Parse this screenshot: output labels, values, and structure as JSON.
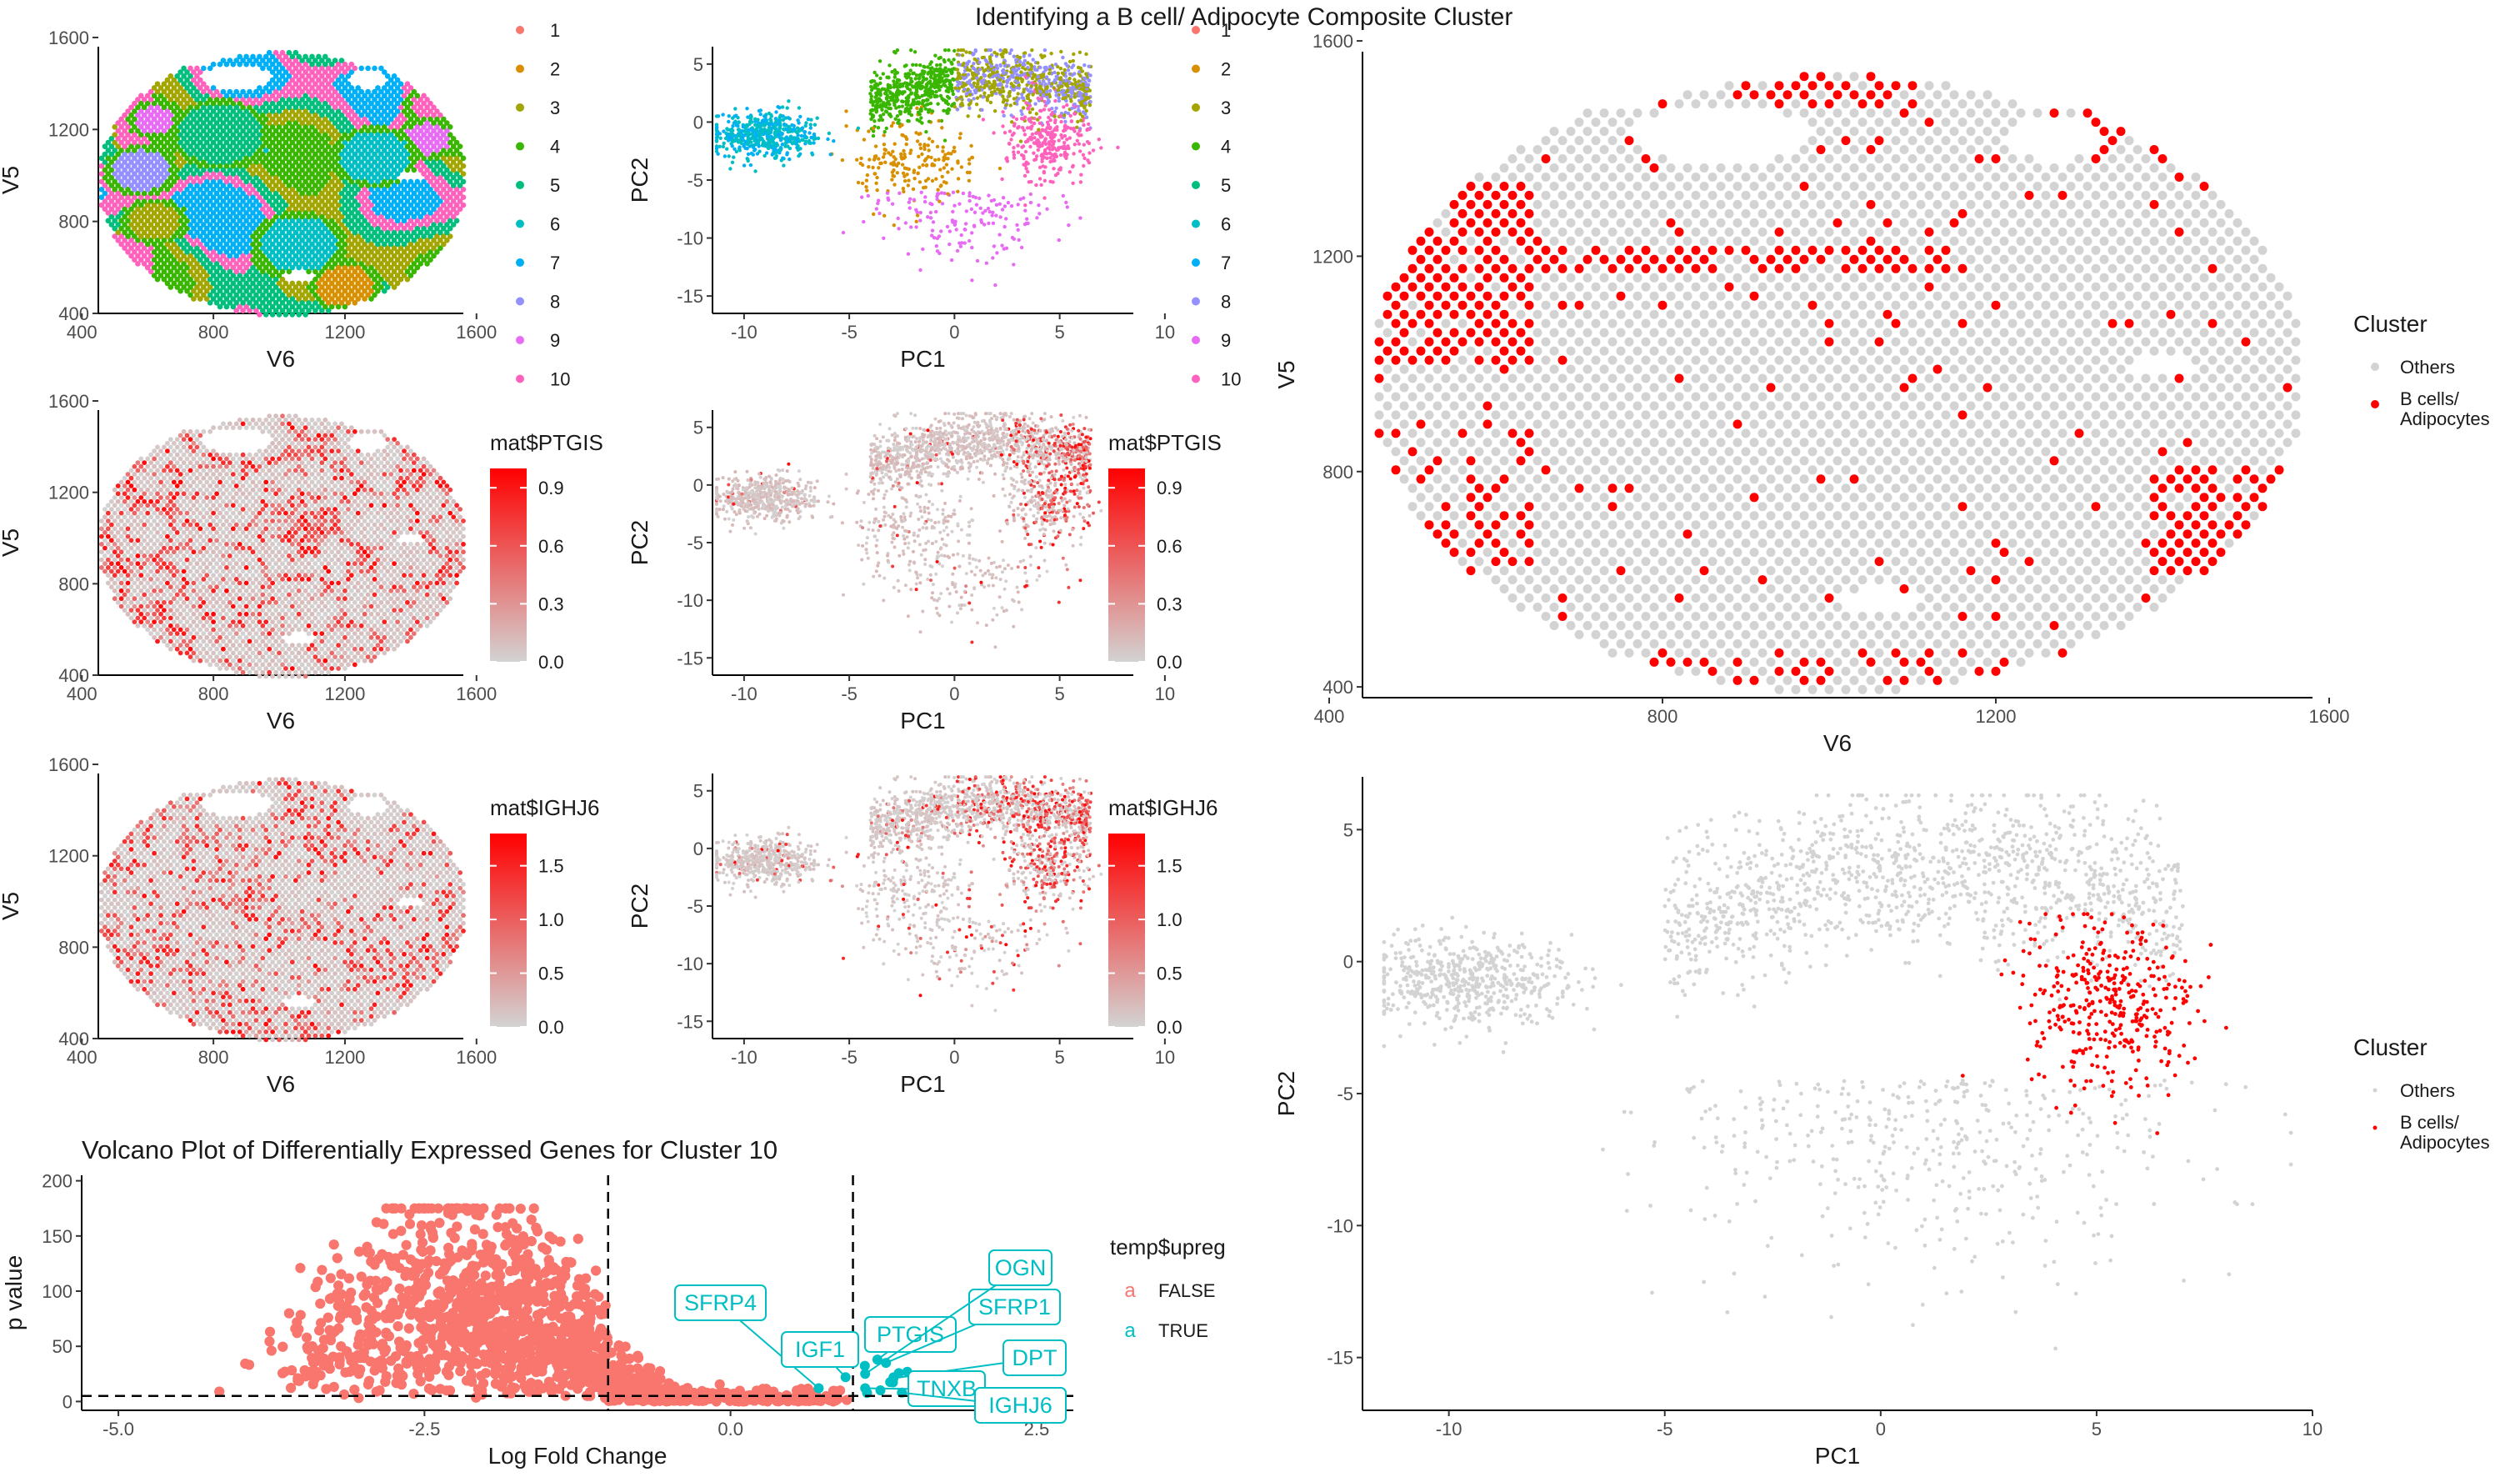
{
  "figure": {
    "title": "Identifying a B cell/ Adipocyte Composite Cluster"
  },
  "colors": {
    "clusters": [
      "#F8766D",
      "#D89000",
      "#A3A500",
      "#39B600",
      "#00BF7D",
      "#00BFC4",
      "#00B0F6",
      "#9590FF",
      "#E76BF3",
      "#FF62BC"
    ],
    "grey": "#D3D3D3",
    "red": "#FF0000",
    "false": "#F8766D",
    "true": "#00BFC4"
  },
  "chart_data": [
    {
      "id": "cluster-spatial",
      "type": "scatter",
      "xlabel": "V6",
      "ylabel": "V5",
      "xlim": [
        450,
        1560
      ],
      "ylim": [
        400,
        1560
      ],
      "xticks": [
        400,
        800,
        1200,
        1600
      ],
      "yticks": [
        400,
        800,
        1200,
        1600
      ],
      "grid": false
    },
    {
      "id": "cluster-pca",
      "type": "scatter",
      "xlabel": "PC1",
      "ylabel": "PC2",
      "xlim": [
        -11.5,
        8.5
      ],
      "ylim": [
        -16.5,
        6.5
      ],
      "xticks": [
        -10,
        -5,
        0,
        5,
        10
      ],
      "yticks": [
        5,
        0,
        -5,
        -10,
        -15
      ],
      "legend": {
        "title": "",
        "position": "right",
        "entries": [
          "1",
          "2",
          "3",
          "4",
          "5",
          "6",
          "7",
          "8",
          "9",
          "10"
        ]
      }
    },
    {
      "id": "ptgis-spatial",
      "type": "scatter",
      "xlabel": "V6",
      "ylabel": "V5",
      "xlim": [
        450,
        1560
      ],
      "ylim": [
        400,
        1560
      ],
      "xticks": [
        400,
        800,
        1200,
        1600
      ],
      "yticks": [
        400,
        800,
        1200,
        1600
      ]
    },
    {
      "id": "ptgis-pca",
      "type": "scatter",
      "xlabel": "PC1",
      "ylabel": "PC2",
      "xlim": [
        -11.5,
        8.5
      ],
      "ylim": [
        -16.5,
        6.5
      ],
      "xticks": [
        -10,
        -5,
        0,
        5,
        10
      ],
      "yticks": [
        5,
        0,
        -5,
        -10,
        -15
      ],
      "legend": {
        "title": "mat$PTGIS",
        "position": "right",
        "ticks": [
          "0.9",
          "0.6",
          "0.3",
          "0.0"
        ],
        "range": [
          0,
          1.0
        ]
      }
    },
    {
      "id": "ighj6-spatial",
      "type": "scatter",
      "xlabel": "V6",
      "ylabel": "V5",
      "xlim": [
        450,
        1560
      ],
      "ylim": [
        400,
        1560
      ],
      "xticks": [
        400,
        800,
        1200,
        1600
      ],
      "yticks": [
        400,
        800,
        1200,
        1600
      ]
    },
    {
      "id": "ighj6-pca",
      "type": "scatter",
      "xlabel": "PC1",
      "ylabel": "PC2",
      "xlim": [
        -11.5,
        8.5
      ],
      "ylim": [
        -16.5,
        6.5
      ],
      "xticks": [
        -10,
        -5,
        0,
        5,
        10
      ],
      "yticks": [
        5,
        0,
        -5,
        -10,
        -15
      ],
      "legend": {
        "title": "mat$IGHJ6",
        "position": "right",
        "ticks": [
          "1.5",
          "1.0",
          "0.5",
          "0.0"
        ],
        "range": [
          0,
          1.8
        ]
      }
    },
    {
      "id": "volcano",
      "type": "scatter",
      "title": "Volcano Plot of Differentially Expressed Genes for Cluster 10",
      "xlabel": "Log Fold Change",
      "ylabel": "p value",
      "xlim": [
        -5.3,
        2.8
      ],
      "ylim": [
        -8,
        205
      ],
      "xticks": [
        -5.0,
        -2.5,
        0.0,
        2.5
      ],
      "xtick_labels": [
        "-5.0",
        "-2.5",
        "0.0",
        "2.5"
      ],
      "yticks": [
        0,
        50,
        100,
        150,
        200
      ],
      "vlines": [
        -1,
        1
      ],
      "hline": 5,
      "legend": {
        "title": "temp$upreg",
        "position": "right",
        "entries": [
          "FALSE",
          "TRUE"
        ]
      },
      "labeled_genes": [
        {
          "gene": "SFRP4",
          "x": 0.72,
          "y": 12
        },
        {
          "gene": "IGF1",
          "x": 0.94,
          "y": 22
        },
        {
          "gene": "PTGIS",
          "x": 1.2,
          "y": 38
        },
        {
          "gene": "SFRP1",
          "x": 1.27,
          "y": 35
        },
        {
          "gene": "OGN",
          "x": 1.1,
          "y": 25
        },
        {
          "gene": "DPT",
          "x": 1.33,
          "y": 21
        },
        {
          "gene": "TNXB",
          "x": 1.1,
          "y": 12
        },
        {
          "gene": "IGHJ6",
          "x": 1.4,
          "y": 8
        }
      ]
    },
    {
      "id": "composite-spatial",
      "type": "scatter",
      "xlabel": "V6",
      "ylabel": "V5",
      "xlim": [
        440,
        1580
      ],
      "ylim": [
        380,
        1580
      ],
      "xticks": [
        400,
        800,
        1200,
        1600
      ],
      "yticks": [
        400,
        800,
        1200,
        1600
      ],
      "legend": {
        "title": "Cluster",
        "position": "right",
        "entries": [
          "Others",
          "B cells/\n Adipocytes"
        ]
      }
    },
    {
      "id": "composite-pca",
      "type": "scatter",
      "xlabel": "PC1",
      "ylabel": "PC2",
      "xlim": [
        -12,
        10
      ],
      "ylim": [
        -17,
        7
      ],
      "xticks": [
        -10,
        -5,
        0,
        5,
        10
      ],
      "yticks": [
        5,
        0,
        -5,
        -10,
        -15
      ],
      "legend": {
        "title": "Cluster",
        "position": "right",
        "entries": [
          "Others",
          "B cells/\n Adipocytes"
        ]
      }
    }
  ]
}
